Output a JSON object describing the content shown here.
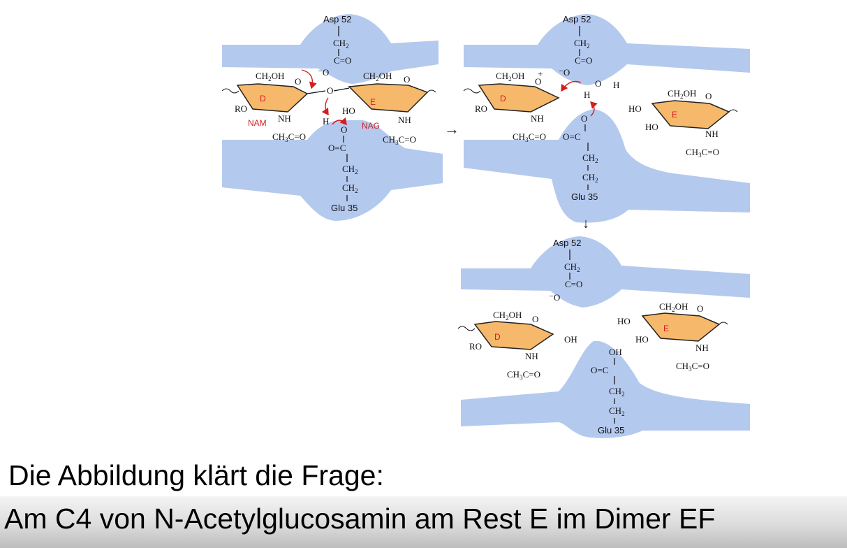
{
  "diagram": {
    "panel1": {
      "asp": "Asp 52",
      "glu": "Glu 35",
      "ring_d": "D",
      "ring_e": "E",
      "nam": "NAM",
      "nag": "NAG",
      "ch2oh": "CH",
      "ch2oh_2": "2",
      "ch2oh_3": "OH",
      "ro": "RO",
      "ho": "HO",
      "nh": "NH",
      "o": "O",
      "h": "H",
      "ch3co": "CH",
      "ch3co_3": "3",
      "ch3co_c": "C=O",
      "ch2": "CH",
      "ch2_2": "2",
      "c_o": "C=O",
      "o_c": "O=C",
      "minus_o": "⁻O"
    },
    "panel2": {
      "asp": "Asp 52",
      "glu": "Glu 35",
      "ring_d": "D",
      "ring_e": "E",
      "plus": "+",
      "o_h": "O",
      "h": "H"
    },
    "panel3": {
      "asp": "Asp 52",
      "glu": "Glu 35",
      "ring_d": "D",
      "ring_e": "E",
      "oh": "OH"
    },
    "arrow_right": "→",
    "arrow_down": "↓"
  },
  "caption": {
    "line1": "Die Abbildung klärt die Frage:",
    "line2": "Am C4 von N-Acetylglucosamin am Rest E im Dimer EF"
  },
  "colors": {
    "enzyme_blue": "#b4c9ee",
    "ring_orange": "#f6b86a",
    "ring_outline": "#222222",
    "arrow_red": "#d21f1f"
  }
}
